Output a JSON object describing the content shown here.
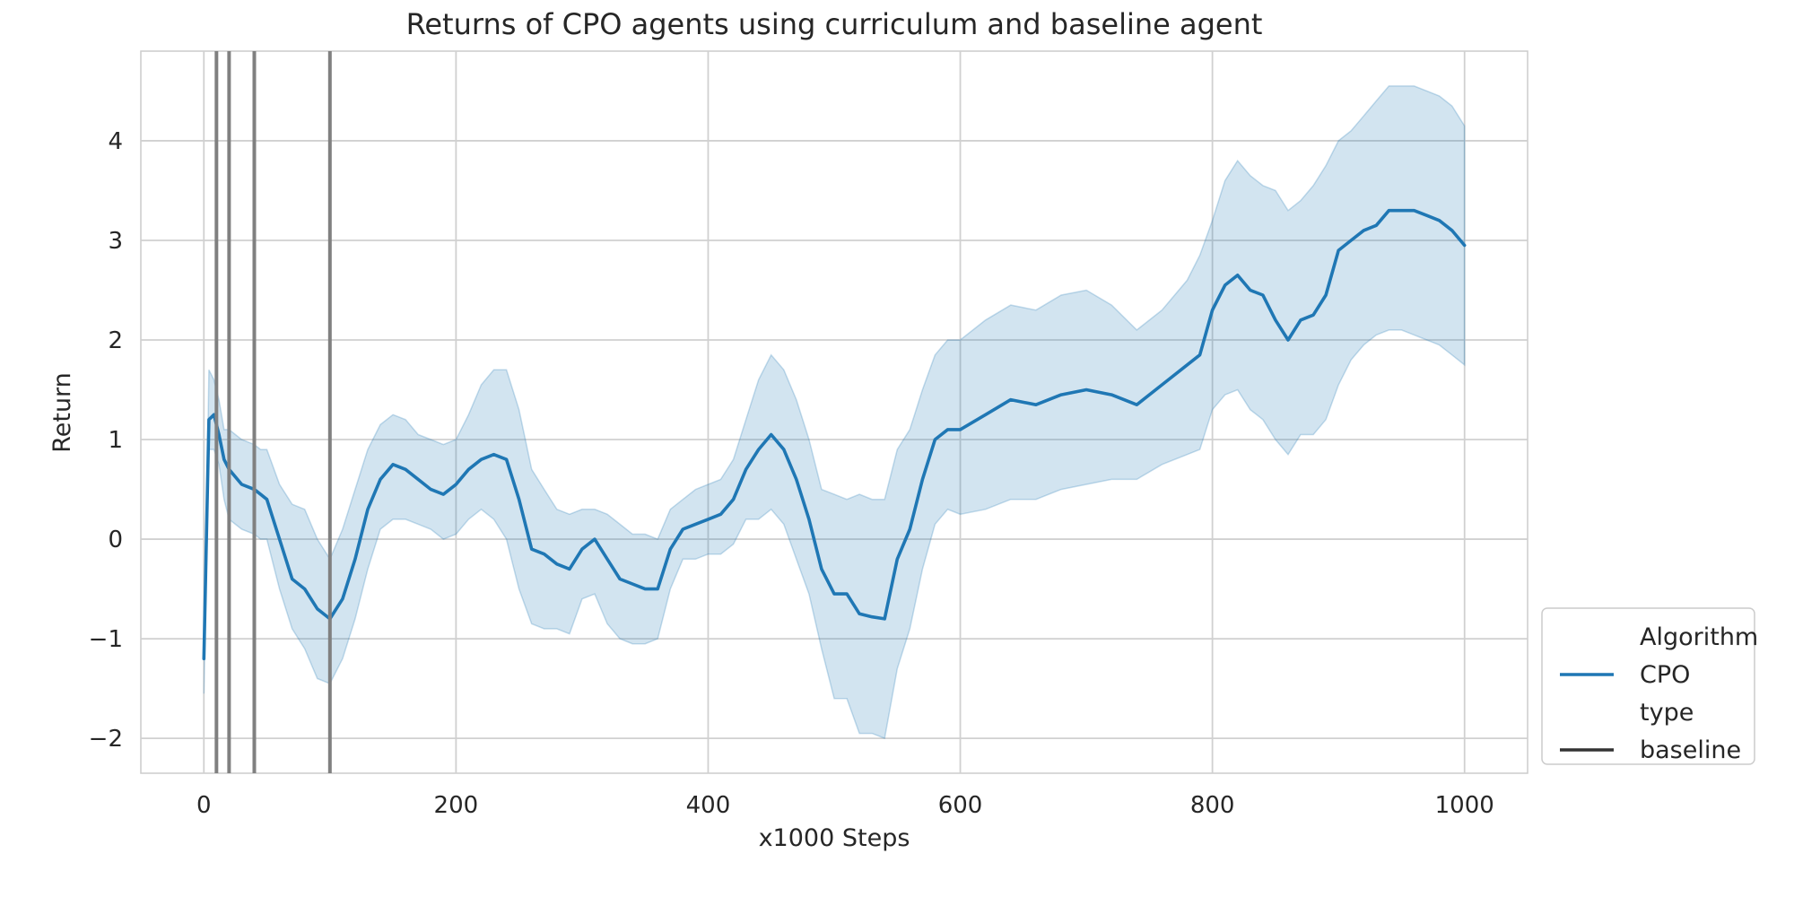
{
  "chart_data": {
    "type": "line",
    "title": "Returns of CPO agents using curriculum and baseline agent",
    "xlabel": "x1000 Steps",
    "ylabel": "Return",
    "xlim": [
      -50,
      1050
    ],
    "ylim": [
      -2.35,
      4.9
    ],
    "xticks": [
      0,
      200,
      400,
      600,
      800,
      1000
    ],
    "xtick_labels": [
      "0",
      "200",
      "400",
      "600",
      "800",
      "1000"
    ],
    "yticks": [
      -2,
      -1,
      0,
      1,
      2,
      3,
      4
    ],
    "ytick_labels": [
      "−2",
      "−1",
      "0",
      "1",
      "2",
      "3",
      "4"
    ],
    "grid": true,
    "legend_placement": "right, lower (outside plot)",
    "legend": [
      {
        "label": "Algorithm",
        "kind": "header"
      },
      {
        "label": "CPO",
        "kind": "line",
        "color": "#1f77b4"
      },
      {
        "label": "type",
        "kind": "header"
      },
      {
        "label": "baseline",
        "kind": "line",
        "color": "#333333"
      }
    ],
    "vertical_lines": {
      "x": [
        10,
        20,
        40,
        100
      ],
      "color": "#808080"
    },
    "colors": {
      "line": "#1f77b4",
      "band": "#1f77b4",
      "grid": "#d0d0d0"
    },
    "series": [
      {
        "name": "CPO",
        "x": [
          0,
          4,
          8,
          12,
          16,
          20,
          30,
          40,
          45,
          50,
          60,
          70,
          80,
          90,
          100,
          110,
          120,
          130,
          140,
          150,
          160,
          170,
          180,
          190,
          200,
          210,
          220,
          230,
          240,
          250,
          260,
          270,
          280,
          290,
          300,
          310,
          320,
          330,
          340,
          350,
          360,
          370,
          380,
          390,
          400,
          410,
          420,
          430,
          440,
          450,
          460,
          470,
          480,
          490,
          500,
          510,
          520,
          530,
          540,
          550,
          560,
          570,
          580,
          590,
          600,
          620,
          640,
          660,
          680,
          700,
          720,
          740,
          760,
          780,
          790,
          800,
          810,
          820,
          830,
          840,
          850,
          860,
          870,
          880,
          890,
          900,
          910,
          920,
          930,
          940,
          950,
          960,
          970,
          980,
          990,
          1000
        ],
        "y": [
          -1.2,
          1.2,
          1.25,
          1.05,
          0.8,
          0.7,
          0.55,
          0.5,
          0.45,
          0.4,
          0.0,
          -0.4,
          -0.5,
          -0.7,
          -0.8,
          -0.6,
          -0.2,
          0.3,
          0.6,
          0.75,
          0.7,
          0.6,
          0.5,
          0.45,
          0.55,
          0.7,
          0.8,
          0.85,
          0.8,
          0.4,
          -0.1,
          -0.15,
          -0.25,
          -0.3,
          -0.1,
          0.0,
          -0.2,
          -0.4,
          -0.45,
          -0.5,
          -0.5,
          -0.1,
          0.1,
          0.15,
          0.2,
          0.25,
          0.4,
          0.7,
          0.9,
          1.05,
          0.9,
          0.6,
          0.2,
          -0.3,
          -0.55,
          -0.55,
          -0.75,
          -0.78,
          -0.8,
          -0.2,
          0.1,
          0.6,
          1.0,
          1.1,
          1.1,
          1.25,
          1.4,
          1.35,
          1.45,
          1.5,
          1.45,
          1.35,
          1.55,
          1.75,
          1.85,
          2.3,
          2.55,
          2.65,
          2.5,
          2.45,
          2.2,
          2.0,
          2.2,
          2.25,
          2.45,
          2.9,
          3.0,
          3.1,
          3.15,
          3.3,
          3.3,
          3.3,
          3.25,
          3.2,
          3.1,
          2.95
        ]
      }
    ],
    "band": {
      "upper": [
        -1.55,
        1.7,
        1.6,
        1.4,
        1.1,
        1.1,
        1.0,
        0.95,
        0.9,
        0.9,
        0.55,
        0.35,
        0.3,
        0.0,
        -0.2,
        0.1,
        0.5,
        0.9,
        1.15,
        1.25,
        1.2,
        1.05,
        1.0,
        0.95,
        1.0,
        1.25,
        1.55,
        1.7,
        1.7,
        1.3,
        0.7,
        0.5,
        0.3,
        0.25,
        0.3,
        0.3,
        0.25,
        0.15,
        0.05,
        0.05,
        0.0,
        0.3,
        0.4,
        0.5,
        0.55,
        0.6,
        0.8,
        1.2,
        1.6,
        1.85,
        1.7,
        1.4,
        1.0,
        0.5,
        0.45,
        0.4,
        0.45,
        0.4,
        0.4,
        0.9,
        1.1,
        1.5,
        1.85,
        2.0,
        2.0,
        2.2,
        2.35,
        2.3,
        2.45,
        2.5,
        2.35,
        2.1,
        2.3,
        2.6,
        2.85,
        3.2,
        3.6,
        3.8,
        3.65,
        3.55,
        3.5,
        3.3,
        3.4,
        3.55,
        3.75,
        4.0,
        4.1,
        4.25,
        4.4,
        4.55,
        4.55,
        4.55,
        4.5,
        4.45,
        4.35,
        4.15
      ],
      "lower": [
        -1.55,
        0.9,
        0.9,
        0.75,
        0.4,
        0.2,
        0.1,
        0.05,
        0.0,
        0.0,
        -0.5,
        -0.9,
        -1.1,
        -1.4,
        -1.45,
        -1.2,
        -0.8,
        -0.3,
        0.1,
        0.2,
        0.2,
        0.15,
        0.1,
        0.0,
        0.05,
        0.2,
        0.3,
        0.2,
        0.0,
        -0.5,
        -0.85,
        -0.9,
        -0.9,
        -0.95,
        -0.6,
        -0.55,
        -0.85,
        -1.0,
        -1.05,
        -1.05,
        -1.0,
        -0.5,
        -0.2,
        -0.2,
        -0.15,
        -0.15,
        -0.05,
        0.2,
        0.2,
        0.3,
        0.15,
        -0.2,
        -0.55,
        -1.1,
        -1.6,
        -1.6,
        -1.95,
        -1.95,
        -2.0,
        -1.3,
        -0.9,
        -0.3,
        0.15,
        0.3,
        0.25,
        0.3,
        0.4,
        0.4,
        0.5,
        0.55,
        0.6,
        0.6,
        0.75,
        0.85,
        0.9,
        1.3,
        1.45,
        1.5,
        1.3,
        1.2,
        1.0,
        0.85,
        1.05,
        1.05,
        1.2,
        1.55,
        1.8,
        1.95,
        2.05,
        2.1,
        2.1,
        2.05,
        2.0,
        1.95,
        1.85,
        1.75
      ]
    }
  }
}
